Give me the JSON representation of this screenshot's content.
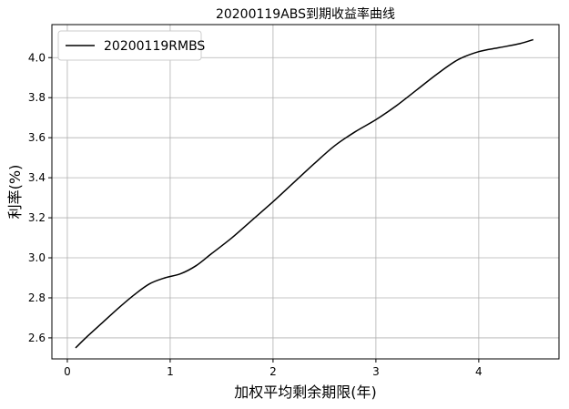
{
  "chart_data": {
    "type": "line",
    "title": "20200119ABS到期收益率曲线",
    "xlabel": "加权平均剩余期限(年)",
    "ylabel": "利率(%)",
    "xlim": [
      -0.15,
      4.78
    ],
    "ylim": [
      2.495,
      4.165
    ],
    "xticks": [
      0,
      1,
      2,
      3,
      4
    ],
    "yticks": [
      2.6,
      2.8,
      3.0,
      3.2,
      3.4,
      3.6,
      3.8,
      4.0
    ],
    "grid": true,
    "legend": "top-left",
    "series": [
      {
        "name": "20200119RMBS",
        "color": "#000000",
        "x": [
          0.08,
          0.2,
          0.35,
          0.5,
          0.65,
          0.8,
          0.95,
          1.1,
          1.25,
          1.4,
          1.6,
          1.8,
          2.0,
          2.2,
          2.4,
          2.6,
          2.8,
          3.0,
          3.2,
          3.4,
          3.6,
          3.8,
          4.0,
          4.2,
          4.4,
          4.53
        ],
        "y": [
          2.55,
          2.61,
          2.68,
          2.75,
          2.815,
          2.87,
          2.9,
          2.92,
          2.96,
          3.02,
          3.1,
          3.19,
          3.28,
          3.375,
          3.47,
          3.56,
          3.63,
          3.69,
          3.76,
          3.84,
          3.92,
          3.99,
          4.03,
          4.05,
          4.07,
          4.09
        ]
      }
    ]
  }
}
